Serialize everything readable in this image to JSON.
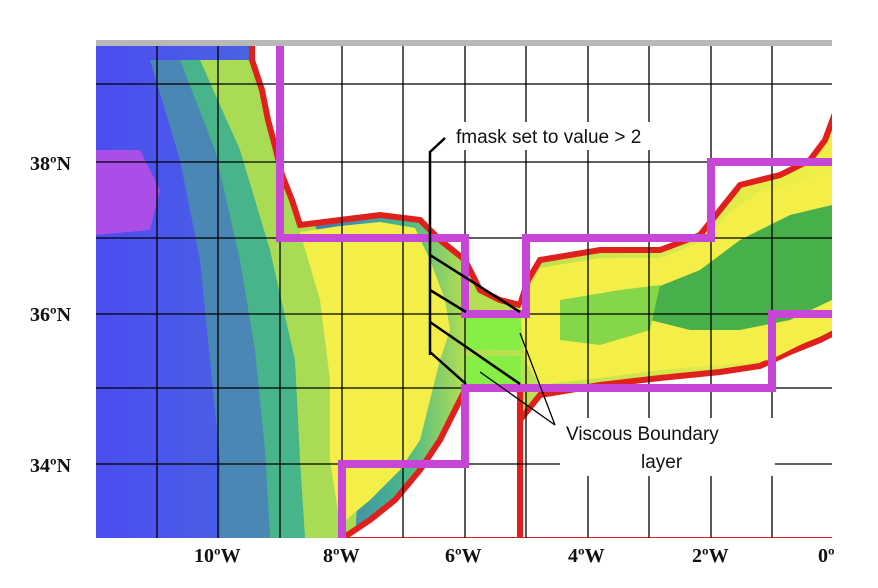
{
  "map": {
    "lat_labels": [
      "38ºN",
      "36ºN",
      "34ºN"
    ],
    "lon_labels": [
      "10ºW",
      "8ºW",
      "6ºW",
      "4ºW",
      "2ºW",
      "0º"
    ],
    "annotations": {
      "fmask": "fmask set to value > 2",
      "viscous_line1": "Viscous Boundary",
      "viscous_line2": "layer"
    },
    "colors": {
      "mask_boundary": "#c746d6",
      "deep_ocean": "#4b4df0",
      "shelf": "#f3ef48",
      "coast": "#e0201c",
      "med_shallow": "#48b04a",
      "viscous_cells": "#86ee44",
      "land": "#ffffff"
    }
  }
}
